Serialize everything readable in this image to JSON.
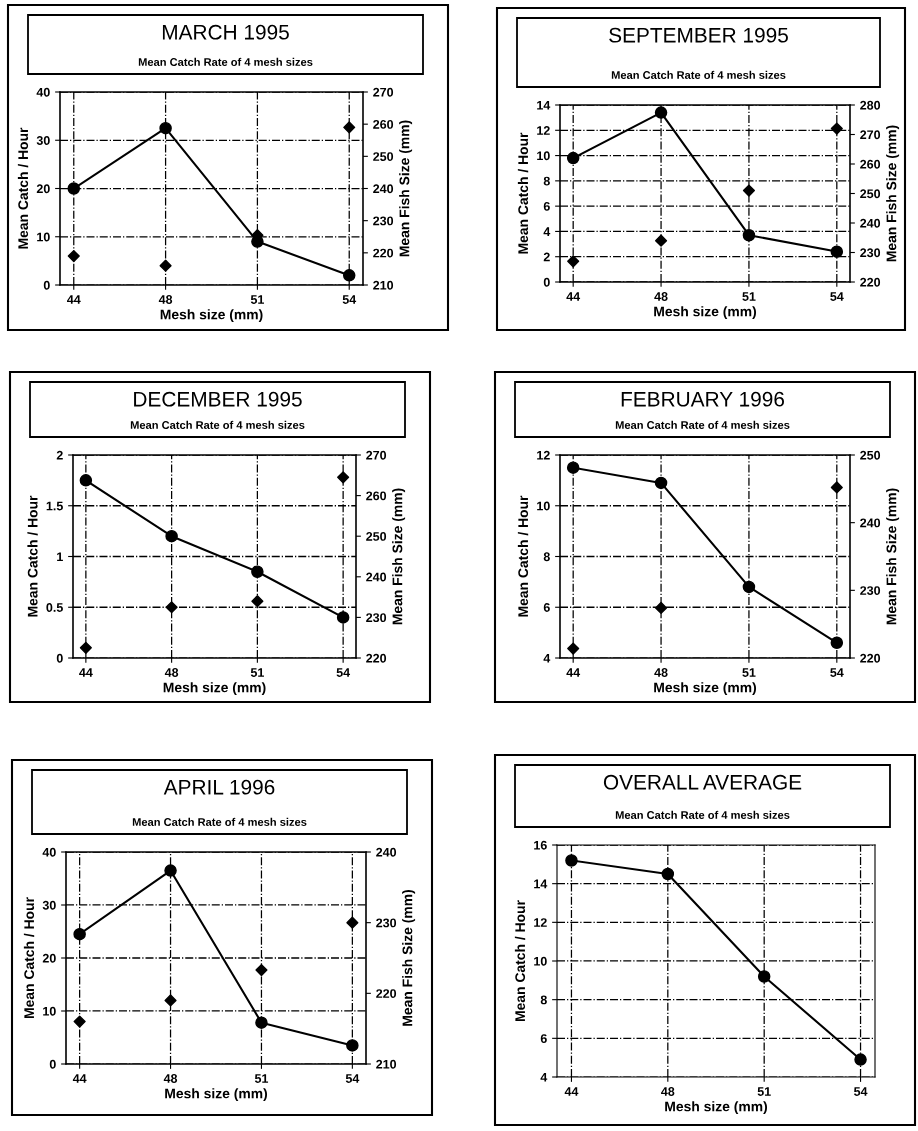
{
  "chart_data": [
    {
      "type": "line",
      "title": "MARCH 1995",
      "subtitle": "Mean Catch Rate of 4 mesh sizes",
      "xlabel": "Mesh size (mm)",
      "ylabel": "Mean Catch / Hour",
      "y2label": "Mean Fish Size (mm)",
      "categories": [
        "44",
        "48",
        "51",
        "54"
      ],
      "grid": true,
      "ylim": [
        0,
        40
      ],
      "yticks": [
        0,
        10,
        20,
        30,
        40
      ],
      "y2lim": [
        210,
        270
      ],
      "y2ticks": [
        210,
        220,
        230,
        240,
        250,
        260,
        270
      ],
      "series": [
        {
          "color": "#000000",
          "marker": "circle",
          "values": [
            20,
            32.5,
            9,
            2
          ]
        },
        {
          "type": "scatter",
          "axis": "y2",
          "color": "#000000",
          "marker": "diamond",
          "values": [
            219,
            216,
            225.5,
            259
          ]
        }
      ]
    },
    {
      "type": "line",
      "title": "SEPTEMBER 1995",
      "subtitle": "Mean Catch Rate of 4 mesh sizes",
      "xlabel": "Mesh size (mm)",
      "ylabel": "Mean Catch / Hour",
      "y2label": "Mean Fish Size (mm)",
      "categories": [
        "44",
        "48",
        "51",
        "54"
      ],
      "grid": true,
      "ylim": [
        0,
        14
      ],
      "yticks": [
        0,
        2,
        4,
        6,
        8,
        10,
        12,
        14
      ],
      "y2lim": [
        220,
        280
      ],
      "y2ticks": [
        220,
        230,
        240,
        250,
        260,
        270,
        280
      ],
      "series": [
        {
          "color": "#000000",
          "marker": "circle",
          "values": [
            9.8,
            13.4,
            3.7,
            2.4
          ]
        },
        {
          "type": "scatter",
          "axis": "y2",
          "color": "#000000",
          "marker": "diamond",
          "values": [
            227,
            234,
            251,
            272
          ]
        }
      ]
    },
    {
      "type": "line",
      "title": "DECEMBER 1995",
      "subtitle": "Mean Catch Rate of 4 mesh sizes",
      "xlabel": "Mesh size (mm)",
      "ylabel": "Mean Catch / Hour",
      "y2label": "Mean Fish Size (mm)",
      "categories": [
        "44",
        "48",
        "51",
        "54"
      ],
      "grid": true,
      "ylim": [
        0,
        2
      ],
      "yticks": [
        0,
        0.5,
        1,
        1.5,
        2
      ],
      "y2lim": [
        220,
        270
      ],
      "y2ticks": [
        220,
        230,
        240,
        250,
        260,
        270
      ],
      "series": [
        {
          "color": "#000000",
          "marker": "circle",
          "values": [
            1.75,
            1.2,
            0.85,
            0.4
          ]
        },
        {
          "type": "scatter",
          "axis": "y2",
          "color": "#000000",
          "marker": "diamond",
          "values": [
            222.5,
            232.5,
            234,
            264.5
          ]
        }
      ]
    },
    {
      "type": "line",
      "title": "FEBRUARY 1996",
      "subtitle": "Mean Catch Rate of 4 mesh sizes",
      "xlabel": "Mesh size (mm)",
      "ylabel": "Mean Catch / Hour",
      "y2label": "Mean Fish Size (mm)",
      "categories": [
        "44",
        "48",
        "51",
        "54"
      ],
      "grid": true,
      "ylim": [
        4,
        12
      ],
      "yticks": [
        4,
        6,
        8,
        10,
        12
      ],
      "y2lim": [
        220,
        250
      ],
      "y2ticks": [
        220,
        230,
        240,
        250
      ],
      "series": [
        {
          "color": "#000000",
          "marker": "circle",
          "values": [
            11.5,
            10.9,
            6.8,
            4.6
          ]
        },
        {
          "type": "scatter",
          "axis": "y2",
          "color": "#000000",
          "marker": "diamond",
          "values": [
            221.4,
            227.4,
            null,
            245.2
          ]
        }
      ]
    },
    {
      "type": "line",
      "title": "APRIL 1996",
      "subtitle": "Mean Catch Rate of 4 mesh sizes",
      "xlabel": "Mesh size (mm)",
      "ylabel": "Mean Catch / Hour",
      "y2label": "Mean Fish Size (mm)",
      "categories": [
        "44",
        "48",
        "51",
        "54"
      ],
      "grid": true,
      "ylim": [
        0,
        40
      ],
      "yticks": [
        0,
        10,
        20,
        30,
        40
      ],
      "y2lim": [
        210,
        240
      ],
      "y2ticks": [
        210,
        220,
        230,
        240
      ],
      "series": [
        {
          "color": "#000000",
          "marker": "circle",
          "values": [
            24.5,
            36.5,
            7.8,
            3.5
          ]
        },
        {
          "type": "scatter",
          "axis": "y2",
          "color": "#000000",
          "marker": "diamond",
          "values": [
            216,
            219,
            223.3,
            230
          ]
        }
      ]
    },
    {
      "type": "line",
      "title": "OVERALL AVERAGE",
      "subtitle": "Mean Catch Rate of 4 mesh sizes",
      "xlabel": "Mesh size (mm)",
      "ylabel": "Mean Catch / Hour",
      "categories": [
        "44",
        "48",
        "51",
        "54"
      ],
      "grid": true,
      "ylim": [
        4,
        16
      ],
      "yticks": [
        4,
        6,
        8,
        10,
        12,
        14,
        16
      ],
      "series": [
        {
          "color": "#000000",
          "marker": "circle",
          "values": [
            15.2,
            14.5,
            9.2,
            4.9
          ]
        }
      ]
    }
  ]
}
